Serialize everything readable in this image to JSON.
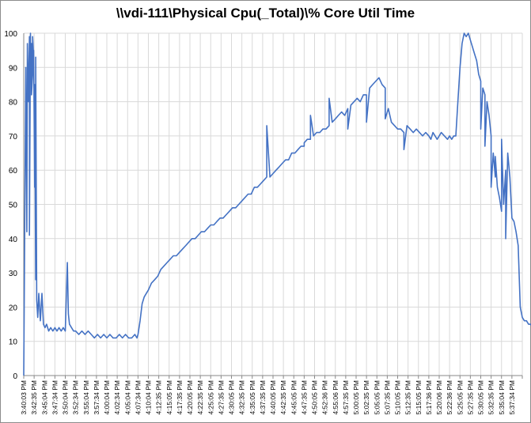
{
  "chart_data": {
    "type": "line",
    "title": "\\\\vdi-111\\Physical Cpu(_Total)\\% Core Util Time",
    "xlabel": "",
    "ylabel": "",
    "ylim": [
      0,
      100
    ],
    "y_ticks": [
      0,
      10,
      20,
      30,
      40,
      50,
      60,
      70,
      80,
      90,
      100
    ],
    "grid": true,
    "legend": "none",
    "line_color": "#4472C4",
    "grid_color": "#d9d9d9",
    "x_tick_labels": [
      "3:40:03 PM",
      "3:42:35 PM",
      "3:45:04 PM",
      "3:47:34 PM",
      "3:50:04 PM",
      "3:52:34 PM",
      "3:55:04 PM",
      "3:57:34 PM",
      "4:00:04 PM",
      "4:02:34 PM",
      "4:05:04 PM",
      "4:07:34 PM",
      "4:10:04 PM",
      "4:12:35 PM",
      "4:15:05 PM",
      "4:17:35 PM",
      "4:20:05 PM",
      "4:22:35 PM",
      "4:25:05 PM",
      "4:27:35 PM",
      "4:30:05 PM",
      "4:32:35 PM",
      "4:35:05 PM",
      "4:37:35 PM",
      "4:40:05 PM",
      "4:42:35 PM",
      "4:45:05 PM",
      "4:47:35 PM",
      "4:50:05 PM",
      "4:52:36 PM",
      "4:55:06 PM",
      "4:57:35 PM",
      "5:00:05 PM",
      "5:02:35 PM",
      "5:05:05 PM",
      "5:07:35 PM",
      "5:10:05 PM",
      "5:12:35 PM",
      "5:15:05 PM",
      "5:17:36 PM",
      "5:20:06 PM",
      "5:22:36 PM",
      "5:25:05 PM",
      "5:27:35 PM",
      "5:30:05 PM",
      "5:32:35 PM",
      "5:35:04 PM",
      "5:37:34 PM"
    ],
    "series": [
      {
        "x": [
          0,
          0.1,
          0.2,
          0.3,
          0.35,
          0.45,
          0.55,
          0.65,
          0.75,
          0.85,
          0.95,
          1.05,
          1.15,
          1.25,
          1.35,
          1.45,
          1.6,
          1.75,
          1.9,
          2.05,
          2.2,
          2.4,
          2.6,
          2.8,
          3.0,
          3.2,
          3.4,
          3.6,
          3.8,
          4.0,
          4.2,
          4.3,
          4.4,
          4.6,
          4.8,
          5.0,
          5.3,
          5.6,
          5.9,
          6.2,
          6.5,
          6.8,
          7.1,
          7.4,
          7.7,
          8.0,
          8.3,
          8.6,
          8.9,
          9.2,
          9.5,
          9.8,
          10.1,
          10.4,
          10.7,
          10.9,
          11.0,
          11.2,
          11.4,
          11.6,
          11.8,
          12.0,
          12.3,
          12.6,
          12.9,
          13.2,
          13.5,
          13.8,
          14.1,
          14.4,
          14.7,
          15.0,
          15.3,
          15.6,
          15.9,
          16.2,
          16.5,
          16.8,
          17.1,
          17.4,
          17.7,
          18.0,
          18.3,
          18.6,
          18.9,
          19.2,
          19.5,
          19.8,
          20.1,
          20.4,
          20.7,
          21.0,
          21.3,
          21.6,
          21.9,
          22.2,
          22.5,
          22.8,
          23.1,
          23.4,
          23.7,
          24.0,
          24.3,
          24.6,
          24.9,
          25.2,
          25.5,
          25.8,
          26.1,
          26.4,
          26.7,
          27.0,
          27.3,
          27.6,
          27.9,
          28.2,
          28.5,
          28.8,
          29.1,
          29.4,
          29.7,
          30.0,
          30.3,
          30.6,
          30.9,
          31.2,
          31.5,
          31.8,
          32.1,
          32.4,
          32.7,
          33.0,
          33.3,
          33.6,
          33.9,
          34.2,
          34.5,
          34.8,
          35.1,
          35.4,
          35.7,
          36.0,
          36.3,
          36.6,
          36.9,
          37.2,
          37.5,
          37.8,
          38.1,
          38.4,
          38.7,
          39.0,
          39.2,
          39.4,
          39.6,
          39.8,
          40.0,
          40.2,
          40.5,
          40.8,
          41.0,
          41.2,
          41.4,
          41.6,
          41.8,
          42.0,
          42.2,
          42.4,
          42.6,
          42.8,
          43.0,
          43.2,
          43.4,
          43.6,
          43.8,
          44.0,
          44.2,
          44.4,
          44.6,
          44.8,
          45.0,
          45.2,
          45.4,
          45.6,
          45.8,
          46.0,
          46.2,
          46.4,
          46.6,
          46.8,
          47.0,
          47.2,
          47.4,
          47.6,
          47.8,
          48.0,
          48.2,
          48.4,
          48.6,
          48.8,
          49.0
        ],
        "values": [
          0,
          45,
          90,
          42,
          97,
          80,
          99,
          100,
          97,
          88,
          93,
          55,
          28,
          22,
          17,
          24,
          16,
          24,
          15,
          14,
          15,
          13,
          14,
          13,
          14,
          13,
          14,
          13,
          14,
          13,
          33,
          18,
          15,
          14,
          13,
          13,
          12,
          13,
          12,
          13,
          12,
          11,
          12,
          11,
          12,
          11,
          12,
          11,
          11,
          12,
          11,
          12,
          11,
          11,
          12,
          11,
          12,
          16,
          21,
          23,
          24,
          25,
          27,
          28,
          29,
          31,
          32,
          33,
          34,
          35,
          35,
          36,
          37,
          38,
          39,
          40,
          40,
          41,
          42,
          42,
          43,
          44,
          44,
          45,
          46,
          46,
          47,
          48,
          49,
          49,
          50,
          51,
          52,
          53,
          53,
          55,
          55,
          56,
          57,
          58,
          58,
          59,
          60,
          61,
          62,
          63,
          63,
          65,
          65,
          66,
          67,
          67,
          69,
          69,
          70,
          71,
          71,
          72,
          72,
          73,
          74,
          75,
          76,
          77,
          76,
          78,
          79,
          80,
          81,
          80,
          82,
          82,
          84,
          85,
          86,
          87,
          85,
          84,
          78,
          74,
          73,
          72,
          72,
          71,
          73,
          72,
          71,
          72,
          71,
          70,
          71,
          70,
          69,
          71,
          70,
          69,
          70,
          71,
          70,
          69,
          70,
          69,
          70,
          70,
          80,
          90,
          97,
          100,
          99,
          100,
          98,
          96,
          94,
          92,
          88,
          86,
          84,
          82,
          80,
          76,
          70,
          65,
          58,
          55,
          52,
          48,
          50,
          60,
          65,
          58,
          46,
          45,
          42,
          38,
          20,
          17,
          16,
          16,
          15,
          15,
          14
        ],
        "extra_spikes": [
          [
            0.55,
            41
          ],
          [
            0.65,
            97
          ],
          [
            0.75,
            82
          ],
          [
            0.85,
            99
          ],
          [
            0.95,
            95
          ],
          [
            1.05,
            85
          ],
          [
            1.15,
            93
          ],
          [
            23.4,
            73
          ],
          [
            27.0,
            68
          ],
          [
            27.6,
            76
          ],
          [
            29.4,
            81
          ],
          [
            31.2,
            72
          ],
          [
            33.0,
            74
          ],
          [
            34.8,
            75
          ],
          [
            36.6,
            66
          ],
          [
            44.0,
            72
          ],
          [
            44.4,
            67
          ],
          [
            45.0,
            55
          ],
          [
            45.4,
            64
          ],
          [
            46.0,
            69
          ],
          [
            46.4,
            40
          ]
        ]
      }
    ]
  }
}
